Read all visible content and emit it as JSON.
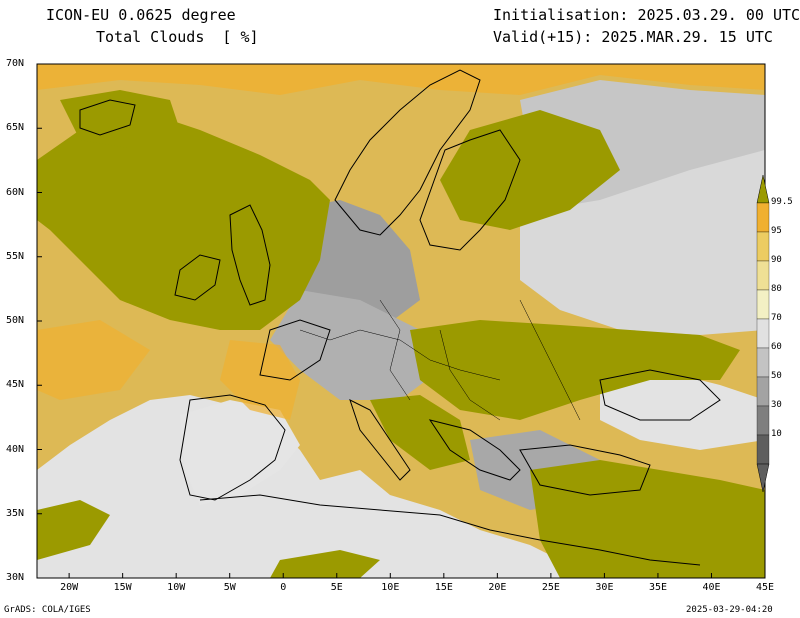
{
  "header": {
    "model": "ICON-EU 0.0625 degree",
    "variable": "Total Clouds  [ %]",
    "init": "Initialisation: 2025.03.29. 00 UTC",
    "valid": "Valid(+15): 2025.MAR.29. 15 UTC"
  },
  "footer": {
    "left": "GrADS: COLA/IGES",
    "right": "2025-03-29-04:20"
  },
  "axes": {
    "lat_ticks": [
      "70N",
      "65N",
      "60N",
      "55N",
      "50N",
      "45N",
      "40N",
      "35N",
      "30N"
    ],
    "lon_ticks": [
      "20W",
      "15W",
      "10W",
      "5W",
      "0",
      "5E",
      "10E",
      "15E",
      "20E",
      "25E",
      "30E",
      "35E",
      "40E",
      "45E"
    ],
    "lat_range": [
      30,
      70
    ],
    "lon_range": [
      -23,
      45
    ]
  },
  "colorbar": {
    "levels": [
      "99.5",
      "95",
      "90",
      "80",
      "70",
      "60",
      "50",
      "30",
      "10"
    ],
    "colors": [
      "#9b9a00",
      "#f0b030",
      "#eccc62",
      "#efe095",
      "#f3f0c4",
      "#e1e1e1",
      "#c3c3c3",
      "#a3a3a3",
      "#7f7f7f",
      "#5e5e5e"
    ]
  },
  "palette": {
    "overcast": "#9b9a00",
    "orange": "#f0b030",
    "tan": "#eccc62",
    "light": "#efe095",
    "grey": "#c3c3c3",
    "clear": "#e3e3e3"
  }
}
